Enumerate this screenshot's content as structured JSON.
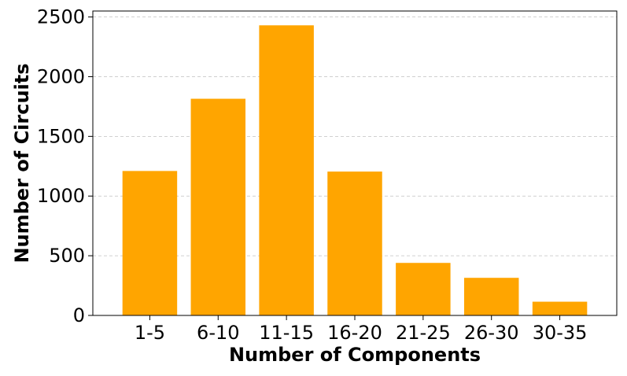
{
  "chart_data": {
    "type": "bar",
    "title": "",
    "xlabel": "Number of Components",
    "ylabel": "Number of Circuits",
    "categories": [
      "1-5",
      "6-10",
      "11-15",
      "16-20",
      "21-25",
      "26-30",
      "30-35"
    ],
    "values": [
      1210,
      1815,
      2430,
      1205,
      440,
      315,
      115
    ],
    "ylim": [
      0,
      2550
    ],
    "yticks": [
      0,
      500,
      1000,
      1500,
      2000,
      2500
    ],
    "grid": "y-dashed",
    "legend": "none",
    "colors": {
      "bar": "#FFA500",
      "grid": "#c0c0c0",
      "axis": "#000000"
    }
  }
}
